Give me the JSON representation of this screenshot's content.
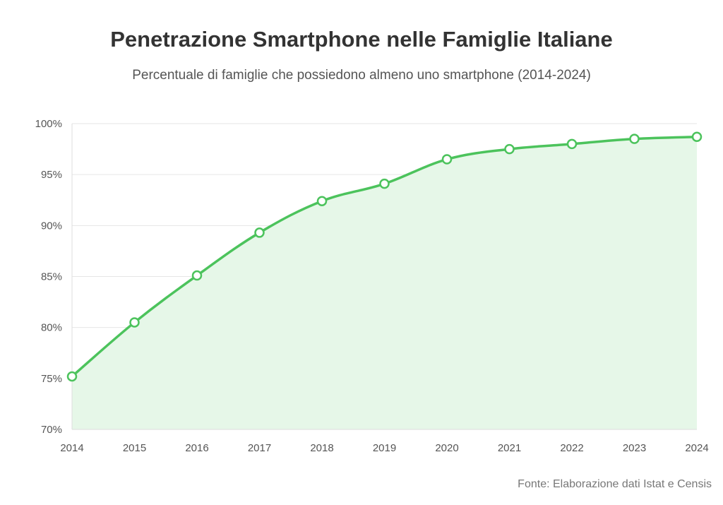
{
  "chart_data": {
    "type": "area",
    "title": "Penetrazione Smartphone nelle Famiglie Italiane",
    "subtitle": "Percentuale di famiglie che possiedono almeno uno smartphone (2014-2024)",
    "source": "Fonte: Elaborazione dati Istat e Censis",
    "categories": [
      "2014",
      "2015",
      "2016",
      "2017",
      "2018",
      "2019",
      "2020",
      "2021",
      "2022",
      "2023",
      "2024"
    ],
    "values": [
      75.2,
      80.5,
      85.1,
      89.3,
      92.4,
      94.1,
      96.5,
      97.5,
      98.0,
      98.5,
      98.7
    ],
    "ylim": [
      70,
      100
    ],
    "yticks": [
      70,
      75,
      80,
      85,
      90,
      95,
      100
    ],
    "ytick_labels": [
      "70%",
      "75%",
      "80%",
      "85%",
      "90%",
      "95%",
      "100%"
    ],
    "grid": true,
    "colors": {
      "line": "#4cc35c",
      "fill": "#e6f7e8",
      "grid": "#e6e6e6",
      "marker_fill": "#ffffff"
    }
  }
}
